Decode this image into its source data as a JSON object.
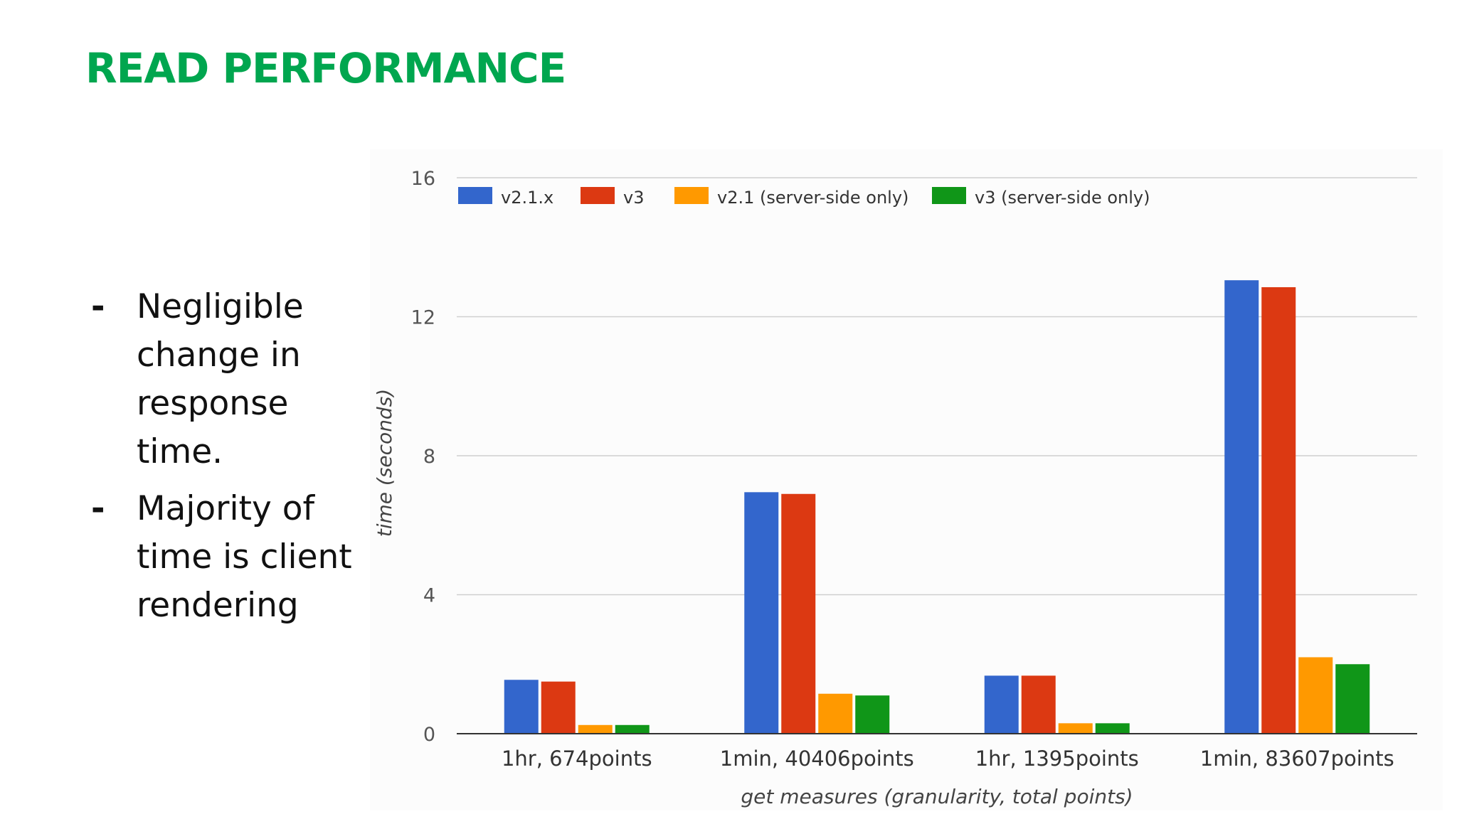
{
  "slide": {
    "title": "READ PERFORMANCE",
    "bullets": [
      "Negligible change in response time.",
      "Majority of time is client rendering"
    ],
    "title_color": "#00a64f"
  },
  "chart_data": {
    "type": "bar",
    "xlabel": "get measures (granularity, total points)",
    "ylabel": "time (seconds)",
    "ylim": [
      0,
      16
    ],
    "yticks": [
      0,
      4,
      8,
      12,
      16
    ],
    "grid": true,
    "legend_position": "top",
    "categories": [
      "1hr, 674points",
      "1min, 40406points",
      "1hr, 1395points",
      "1min, 83607points"
    ],
    "series": [
      {
        "name": "v2.1.x",
        "color": "#3366cc",
        "values": [
          1.55,
          6.95,
          1.67,
          13.05
        ]
      },
      {
        "name": "v3",
        "color": "#dc3912",
        "values": [
          1.5,
          6.9,
          1.67,
          12.85
        ]
      },
      {
        "name": "v2.1 (server-side only)",
        "color": "#ff9900",
        "values": [
          0.25,
          1.15,
          0.3,
          2.2
        ]
      },
      {
        "name": "v3 (server-side only)",
        "color": "#109618",
        "values": [
          0.25,
          1.1,
          0.3,
          2.0
        ]
      }
    ]
  }
}
